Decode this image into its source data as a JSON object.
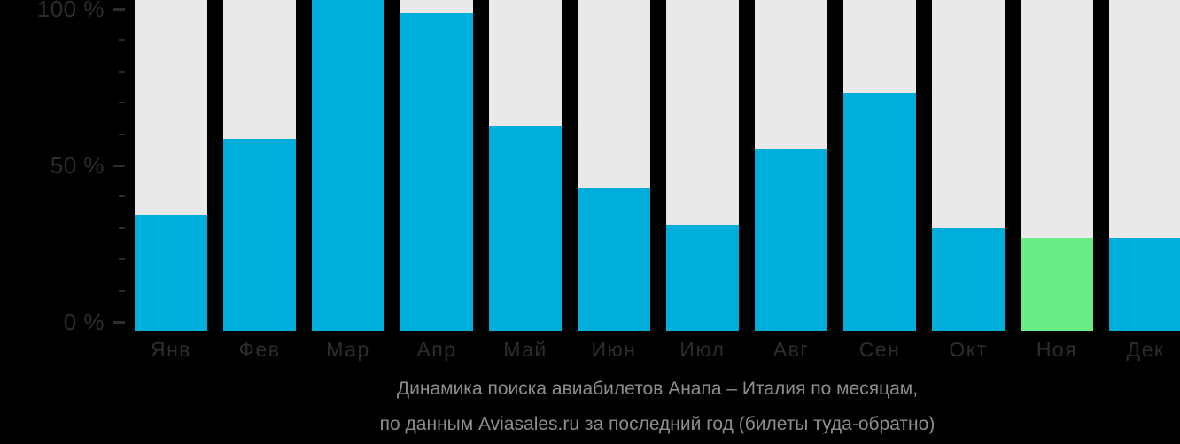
{
  "chart_data": {
    "type": "bar",
    "title": "Динамика поиска авиабилетов Анапа – Италия по месяцам,",
    "subtitle": "по данным Aviasales.ru за последний год (билеты туда-обратно)",
    "categories": [
      "Янв",
      "Фев",
      "Мар",
      "Апр",
      "Май",
      "Июн",
      "Июл",
      "Авг",
      "Сен",
      "Окт",
      "Ноя",
      "Дек"
    ],
    "values": [
      35,
      58,
      100,
      96,
      62,
      43,
      32,
      55,
      72,
      31,
      28,
      28
    ],
    "unit": "%",
    "ylim": [
      0,
      100
    ],
    "y_ticks": [
      {
        "label": "100 %",
        "value": 100
      },
      {
        "label": "50 %",
        "value": 50
      },
      {
        "label": "0 %",
        "value": 0
      }
    ],
    "minor_tick_step": 10,
    "highlighted_category": "Ноя",
    "highlighted_index": 10,
    "legend": "none",
    "grid": "off",
    "colors": {
      "bar": "#00AEDC",
      "highlight_bar": "#69EE87",
      "bar_track": "#E9E9E9",
      "background": "#000000",
      "axis_text": "#2D2D2D",
      "caption_text": "#8D8D8D"
    }
  }
}
